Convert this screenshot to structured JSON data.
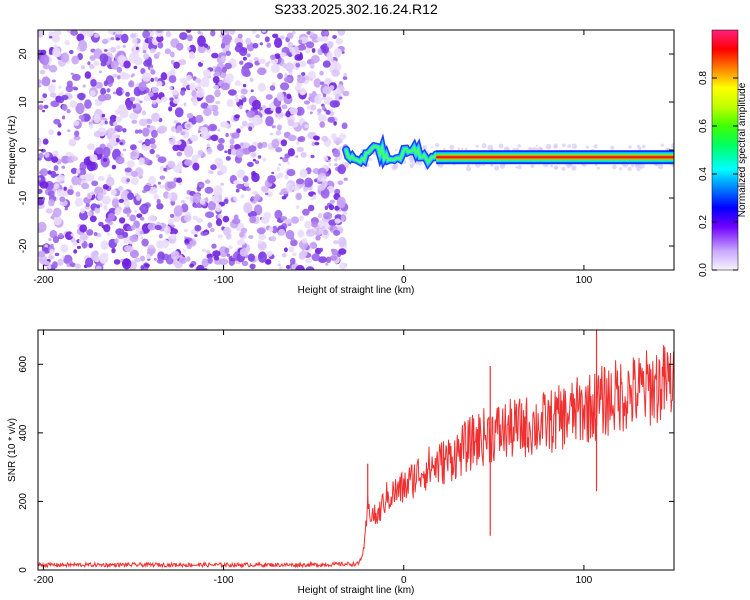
{
  "chart_data": [
    {
      "type": "heatmap",
      "title": "S233.2025.302.16.24.R12",
      "xlabel": "Height of straight line (km)",
      "ylabel": "Frequency (Hz)",
      "xlim": [
        -203,
        150
      ],
      "ylim": [
        -25,
        25
      ],
      "xticks": [
        -200,
        -100,
        0,
        100
      ],
      "yticks": [
        -20,
        -10,
        0,
        10,
        20
      ],
      "colorbar": {
        "label": "Normalized spectral amplitude",
        "range": [
          0,
          1
        ],
        "ticks": [
          0.0,
          0.2,
          0.4,
          0.6,
          0.8
        ]
      },
      "features": [
        {
          "name": "noise region",
          "x_range": [
            -203,
            -32
          ],
          "freq_range": [
            -25,
            25
          ],
          "amplitude": "0.0-0.2"
        },
        {
          "name": "signal trace",
          "x_range": [
            -32,
            150
          ],
          "freq_approx": -1.5,
          "amplitude": "0.2-1.0"
        }
      ]
    },
    {
      "type": "line",
      "xlabel": "Height of straight line (km)",
      "ylabel": "SNR (10 * v/v)",
      "xlim": [
        -203,
        150
      ],
      "ylim": [
        0,
        700
      ],
      "xticks": [
        -200,
        -100,
        0,
        100
      ],
      "yticks": [
        0,
        200,
        400,
        600
      ],
      "series": [
        {
          "name": "SNR",
          "color": "#f03030",
          "x": [
            -203,
            -150,
            -100,
            -50,
            -25,
            -22,
            -20,
            -15,
            -10,
            0,
            10,
            20,
            30,
            40,
            50,
            60,
            70,
            80,
            90,
            100,
            107,
            110,
            120,
            130,
            140,
            150
          ],
          "y": [
            15,
            15,
            15,
            15,
            18,
            60,
            180,
            150,
            210,
            240,
            290,
            310,
            340,
            380,
            400,
            410,
            420,
            430,
            450,
            470,
            480,
            490,
            510,
            520,
            540,
            550
          ],
          "spikes": [
            [
              -20,
              310
            ],
            [
              48,
              595
            ],
            [
              48,
              100
            ],
            [
              107,
              700
            ],
            [
              107,
              230
            ]
          ]
        }
      ]
    }
  ]
}
